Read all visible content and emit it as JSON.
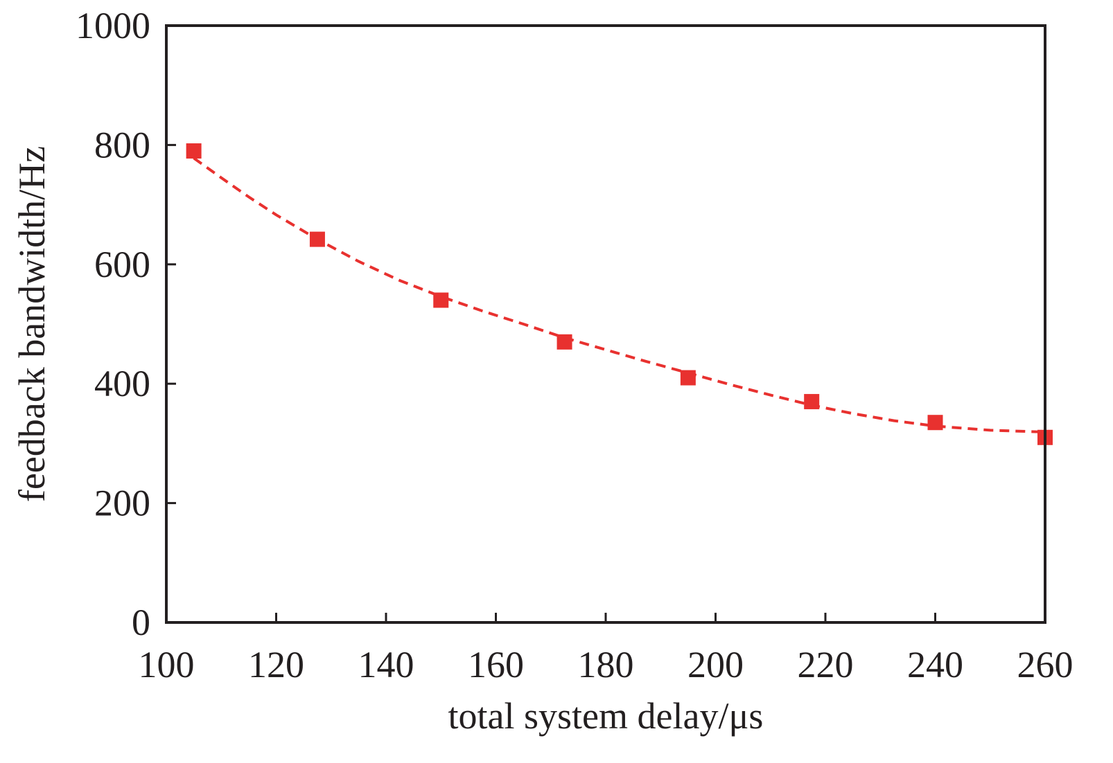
{
  "chart_data": {
    "type": "scatter",
    "title": "",
    "xlabel": "total system delay/μs",
    "ylabel": "feedback bandwidth/Hz",
    "xlim": [
      100,
      260
    ],
    "ylim": [
      0,
      1000
    ],
    "x_ticks": [
      100,
      120,
      140,
      160,
      180,
      200,
      220,
      240,
      260
    ],
    "y_ticks": [
      0,
      200,
      400,
      600,
      800,
      1000
    ],
    "x_tick_labels": [
      "100",
      "120",
      "140",
      "160",
      "180",
      "200",
      "220",
      "240",
      "260"
    ],
    "y_tick_labels": [
      "0",
      "200",
      "400",
      "600",
      "800",
      "1000"
    ],
    "grid": false,
    "legend": "none",
    "series": [
      {
        "style": "markers",
        "marker": "square",
        "color": "#e8312f",
        "x": [
          105,
          127.5,
          150,
          172.5,
          195,
          217.5,
          240,
          260
        ],
        "y": [
          790,
          642,
          540,
          470,
          410,
          370,
          335,
          310
        ]
      },
      {
        "style": "dashed-line",
        "color": "#e8312f",
        "x": [
          105,
          110,
          115,
          120,
          127.5,
          135,
          142.5,
          150,
          157.5,
          165,
          172.5,
          180,
          187.5,
          195,
          202.5,
          210,
          217.5,
          225,
          232.5,
          240,
          250,
          260
        ],
        "y": [
          778,
          745,
          713,
          683,
          642,
          605,
          573,
          546,
          522,
          500,
          477,
          457,
          437,
          418,
          399,
          381,
          364,
          350,
          338,
          329,
          322,
          319
        ]
      }
    ]
  }
}
